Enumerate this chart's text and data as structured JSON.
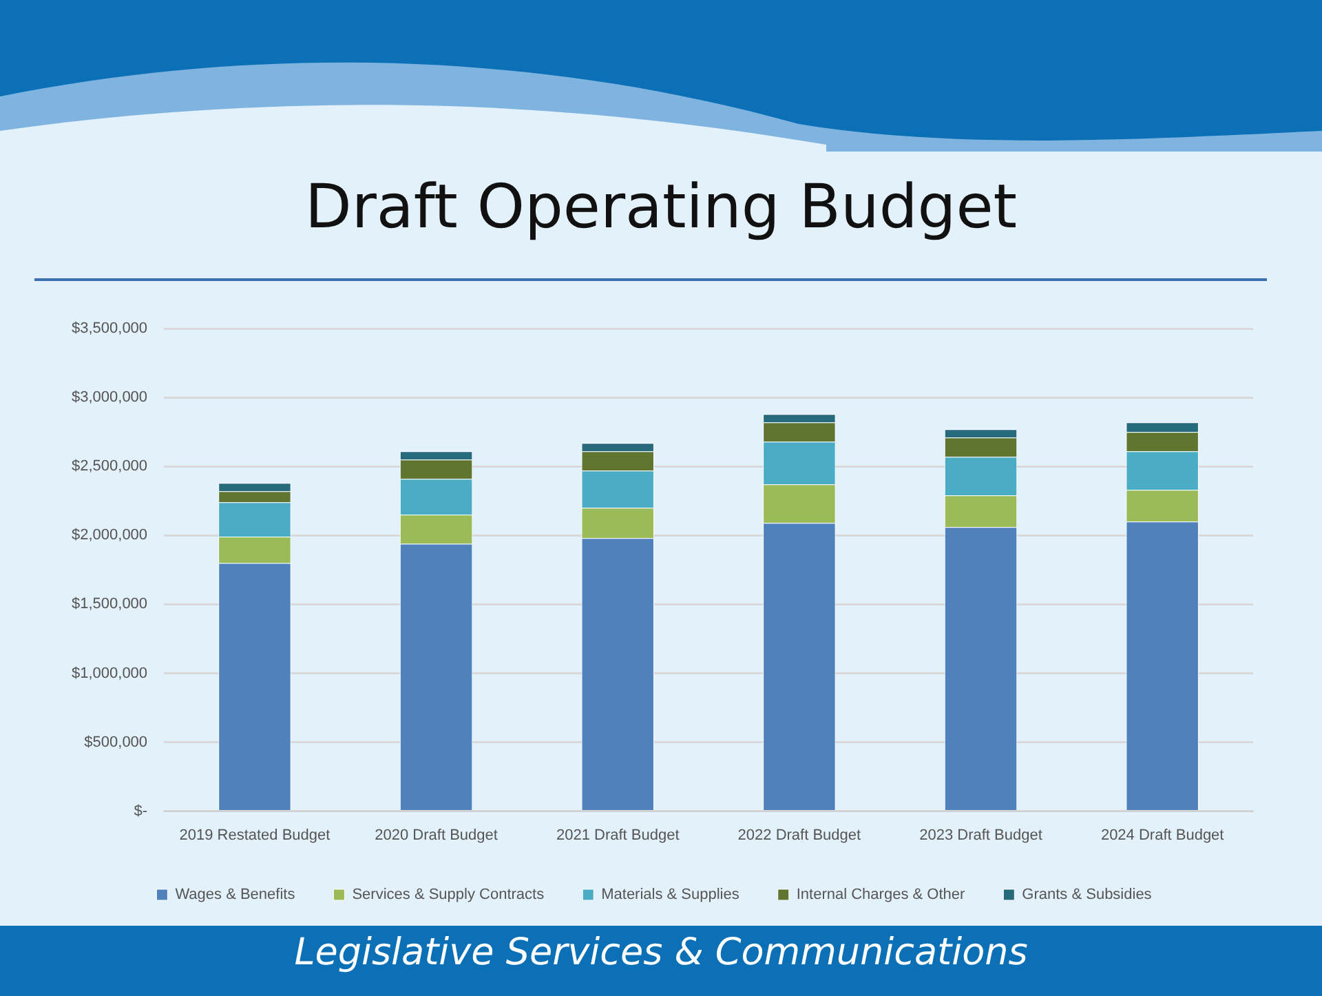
{
  "chart_data": {
    "type": "bar",
    "title": "Draft Operating Budget",
    "stacked": true,
    "grid": "y",
    "legend": "bottom",
    "categories": [
      "2019 Restated Budget",
      "2020 Draft Budget",
      "2021 Draft Budget",
      "2022 Draft Budget",
      "2023 Draft Budget",
      "2024 Draft Budget"
    ],
    "series": [
      {
        "name": "Wages & Benefits",
        "color": "#4f81bd",
        "values": [
          1800000,
          1940000,
          1980000,
          2090000,
          2060000,
          2100000
        ]
      },
      {
        "name": "Services & Supply Contracts",
        "color": "#9bbb59",
        "values": [
          190000,
          210000,
          220000,
          280000,
          230000,
          230000
        ]
      },
      {
        "name": "Materials & Supplies",
        "color": "#4bacc6",
        "values": [
          250000,
          260000,
          270000,
          310000,
          280000,
          280000
        ]
      },
      {
        "name": "Internal Charges & Other",
        "color": "#5f7530",
        "values": [
          80000,
          140000,
          140000,
          140000,
          140000,
          140000
        ]
      },
      {
        "name": "Grants & Subsidies",
        "color": "#276a7c",
        "values": [
          60000,
          60000,
          60000,
          60000,
          60000,
          70000
        ]
      }
    ],
    "ylim": [
      0,
      3500000
    ],
    "yticks": [
      {
        "value": 0,
        "label": "$-"
      },
      {
        "value": 500000,
        "label": "$500,000"
      },
      {
        "value": 1000000,
        "label": "$1,000,000"
      },
      {
        "value": 1500000,
        "label": "$1,500,000"
      },
      {
        "value": 2000000,
        "label": "$2,000,000"
      },
      {
        "value": 2500000,
        "label": "$2,500,000"
      },
      {
        "value": 3000000,
        "label": "$3,000,000"
      },
      {
        "value": 3500000,
        "label": "$3,500,000"
      }
    ],
    "annotations": [
      "Legislative Services & Communications"
    ]
  }
}
